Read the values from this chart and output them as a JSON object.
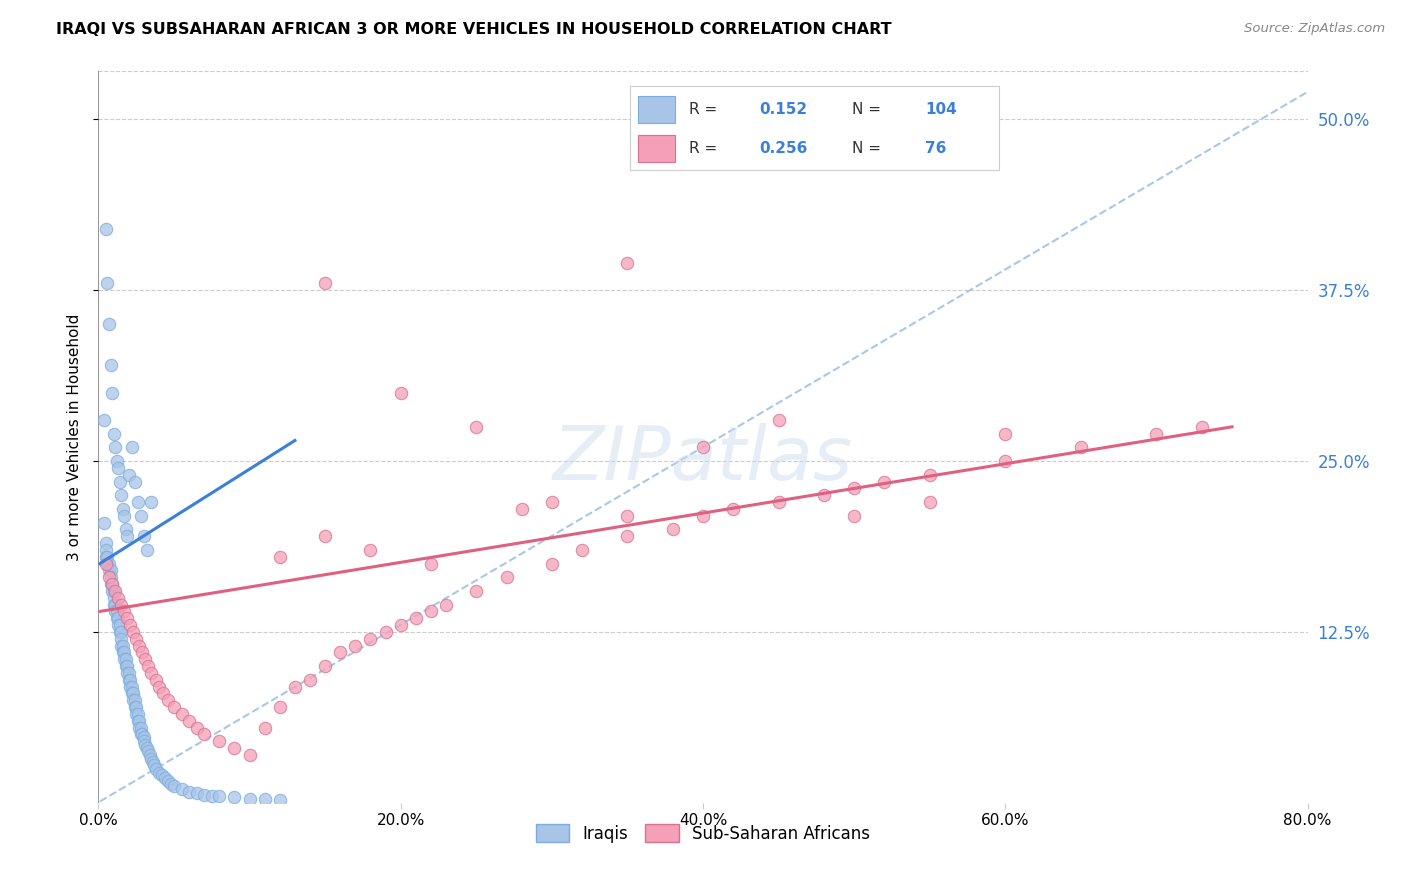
{
  "title": "IRAQI VS SUBSAHARAN AFRICAN 3 OR MORE VEHICLES IN HOUSEHOLD CORRELATION CHART",
  "source": "Source: ZipAtlas.com",
  "xlabel_ticks": [
    "0.0%",
    "20.0%",
    "40.0%",
    "60.0%",
    "80.0%"
  ],
  "ylabel_ticks": [
    "12.5%",
    "25.0%",
    "37.5%",
    "50.0%"
  ],
  "xlabel_tick_vals": [
    0.0,
    0.2,
    0.4,
    0.6,
    0.8
  ],
  "ylabel_tick_vals": [
    0.125,
    0.25,
    0.375,
    0.5
  ],
  "ylabel_label": "3 or more Vehicles in Household",
  "xlim": [
    0.0,
    0.8
  ],
  "ylim": [
    0.0,
    0.535
  ],
  "iraqis_color": "#a8c4e8",
  "subsaharan_color": "#f4a0b8",
  "iraqis_line_color": "#3a7fd9",
  "subsaharan_line_color": "#e06080",
  "background_color": "#ffffff",
  "grid_color": "#cccccc",
  "dashed_line_color": "#a8c8e8",
  "iraqis_x": [
    0.004,
    0.005,
    0.005,
    0.005,
    0.006,
    0.006,
    0.007,
    0.007,
    0.008,
    0.008,
    0.008,
    0.009,
    0.009,
    0.01,
    0.01,
    0.01,
    0.011,
    0.011,
    0.012,
    0.012,
    0.013,
    0.013,
    0.014,
    0.014,
    0.015,
    0.015,
    0.015,
    0.016,
    0.016,
    0.017,
    0.017,
    0.018,
    0.018,
    0.019,
    0.019,
    0.02,
    0.02,
    0.021,
    0.021,
    0.022,
    0.022,
    0.023,
    0.023,
    0.024,
    0.024,
    0.025,
    0.025,
    0.026,
    0.026,
    0.027,
    0.027,
    0.028,
    0.028,
    0.029,
    0.03,
    0.03,
    0.031,
    0.032,
    0.033,
    0.034,
    0.035,
    0.036,
    0.037,
    0.038,
    0.04,
    0.042,
    0.044,
    0.046,
    0.048,
    0.05,
    0.055,
    0.06,
    0.065,
    0.07,
    0.075,
    0.08,
    0.09,
    0.1,
    0.11,
    0.12,
    0.004,
    0.005,
    0.006,
    0.007,
    0.008,
    0.009,
    0.01,
    0.011,
    0.012,
    0.013,
    0.014,
    0.015,
    0.016,
    0.017,
    0.018,
    0.019,
    0.02,
    0.022,
    0.024,
    0.026,
    0.028,
    0.03,
    0.032,
    0.035
  ],
  "iraqis_y": [
    0.205,
    0.19,
    0.185,
    0.18,
    0.18,
    0.175,
    0.175,
    0.17,
    0.17,
    0.165,
    0.16,
    0.16,
    0.155,
    0.155,
    0.15,
    0.145,
    0.145,
    0.14,
    0.14,
    0.135,
    0.135,
    0.13,
    0.13,
    0.125,
    0.125,
    0.12,
    0.115,
    0.115,
    0.11,
    0.11,
    0.105,
    0.105,
    0.1,
    0.1,
    0.095,
    0.095,
    0.09,
    0.09,
    0.085,
    0.085,
    0.08,
    0.08,
    0.075,
    0.075,
    0.07,
    0.07,
    0.065,
    0.065,
    0.06,
    0.06,
    0.055,
    0.055,
    0.05,
    0.05,
    0.048,
    0.045,
    0.042,
    0.04,
    0.038,
    0.035,
    0.032,
    0.03,
    0.028,
    0.025,
    0.022,
    0.02,
    0.018,
    0.016,
    0.014,
    0.012,
    0.01,
    0.008,
    0.007,
    0.006,
    0.005,
    0.005,
    0.004,
    0.003,
    0.003,
    0.002,
    0.28,
    0.42,
    0.38,
    0.35,
    0.32,
    0.3,
    0.27,
    0.26,
    0.25,
    0.245,
    0.235,
    0.225,
    0.215,
    0.21,
    0.2,
    0.195,
    0.24,
    0.26,
    0.235,
    0.22,
    0.21,
    0.195,
    0.185,
    0.22
  ],
  "subsaharan_x": [
    0.005,
    0.007,
    0.009,
    0.011,
    0.013,
    0.015,
    0.017,
    0.019,
    0.021,
    0.023,
    0.025,
    0.027,
    0.029,
    0.031,
    0.033,
    0.035,
    0.038,
    0.04,
    0.043,
    0.046,
    0.05,
    0.055,
    0.06,
    0.065,
    0.07,
    0.08,
    0.09,
    0.1,
    0.11,
    0.12,
    0.13,
    0.14,
    0.15,
    0.16,
    0.17,
    0.18,
    0.19,
    0.2,
    0.21,
    0.22,
    0.23,
    0.25,
    0.27,
    0.3,
    0.32,
    0.35,
    0.38,
    0.4,
    0.42,
    0.45,
    0.48,
    0.5,
    0.52,
    0.55,
    0.6,
    0.65,
    0.7,
    0.73,
    0.15,
    0.2,
    0.25,
    0.3,
    0.35,
    0.4,
    0.45,
    0.5,
    0.55,
    0.6,
    0.12,
    0.15,
    0.18,
    0.22,
    0.28,
    0.35
  ],
  "subsaharan_y": [
    0.175,
    0.165,
    0.16,
    0.155,
    0.15,
    0.145,
    0.14,
    0.135,
    0.13,
    0.125,
    0.12,
    0.115,
    0.11,
    0.105,
    0.1,
    0.095,
    0.09,
    0.085,
    0.08,
    0.075,
    0.07,
    0.065,
    0.06,
    0.055,
    0.05,
    0.045,
    0.04,
    0.035,
    0.055,
    0.07,
    0.085,
    0.09,
    0.1,
    0.11,
    0.115,
    0.12,
    0.125,
    0.13,
    0.135,
    0.14,
    0.145,
    0.155,
    0.165,
    0.175,
    0.185,
    0.195,
    0.2,
    0.21,
    0.215,
    0.22,
    0.225,
    0.23,
    0.235,
    0.24,
    0.25,
    0.26,
    0.27,
    0.275,
    0.38,
    0.3,
    0.275,
    0.22,
    0.21,
    0.26,
    0.28,
    0.21,
    0.22,
    0.27,
    0.18,
    0.195,
    0.185,
    0.175,
    0.215,
    0.395
  ],
  "iraqis_trendline_x": [
    0.001,
    0.13
  ],
  "iraqis_trendline_y": [
    0.175,
    0.265
  ],
  "subsaharan_trendline_x": [
    0.001,
    0.75
  ],
  "subsaharan_trendline_y": [
    0.14,
    0.275
  ],
  "dashed_line_x": [
    0.001,
    0.8
  ],
  "dashed_line_y": [
    0.001,
    0.52
  ]
}
